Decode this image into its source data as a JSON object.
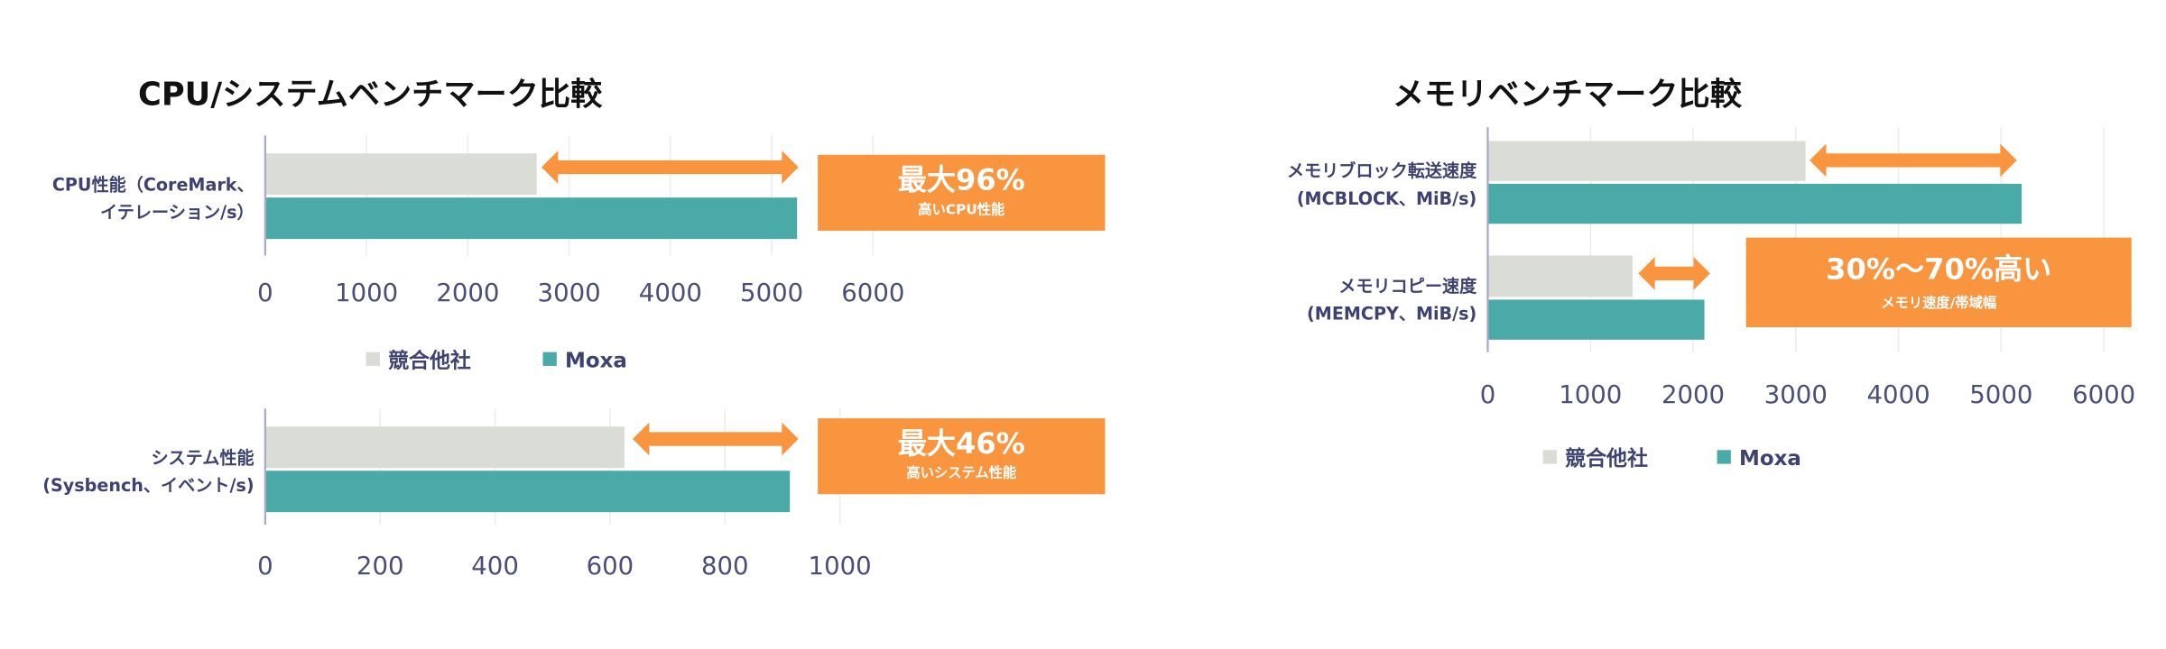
{
  "colors": {
    "competitor": "#d9ddd6",
    "moxa": "#4aaaa8",
    "highlight": "#f9953f",
    "label": "#3d4270",
    "grid": "#ececf0"
  },
  "chart_data": [
    {
      "type": "bar",
      "orientation": "horizontal",
      "title": "CPU/システムベンチマーク比較",
      "categories": [
        [
          "CPU性能（CoreMark、",
          "イテレーション/s）"
        ]
      ],
      "series": [
        {
          "name": "競合他社",
          "values": [
            2680
          ]
        },
        {
          "name": "Moxa",
          "values": [
            5250
          ]
        }
      ],
      "xlim": [
        0,
        6000
      ],
      "xticks": [
        "0",
        "1000",
        "2000",
        "3000",
        "4000",
        "5000",
        "6000"
      ],
      "grid": true,
      "legend": "bottom",
      "annotation": {
        "main": "最大96%",
        "sub": "高いCPU性能",
        "arrow": "double"
      }
    },
    {
      "type": "bar",
      "orientation": "horizontal",
      "title": "",
      "categories": [
        [
          "システム性能",
          "(Sysbench、イベント/s)"
        ]
      ],
      "series": [
        {
          "name": "競合他社",
          "values": [
            625
          ]
        },
        {
          "name": "Moxa",
          "values": [
            913
          ]
        }
      ],
      "xlim": [
        0,
        1000
      ],
      "xticks": [
        "0",
        "200",
        "400",
        "600",
        "800",
        "1000"
      ],
      "grid": true,
      "annotation": {
        "main": "最大46%",
        "sub": "高いシステム性能",
        "arrow": "double"
      }
    },
    {
      "type": "bar",
      "orientation": "horizontal",
      "title": "メモリベンチマーク比較",
      "categories": [
        [
          "メモリブロック転送速度",
          "(MCBLOCK、MiB/s)"
        ],
        [
          "メモリコピー速度",
          "(MEMCPY、MiB/s)"
        ]
      ],
      "series": [
        {
          "name": "競合他社",
          "values": [
            3095,
            1410
          ]
        },
        {
          "name": "Moxa",
          "values": [
            5200,
            2110
          ]
        }
      ],
      "xlim": [
        0,
        6000
      ],
      "xticks": [
        "0",
        "1000",
        "2000",
        "3000",
        "4000",
        "5000",
        "6000"
      ],
      "grid": true,
      "legend": "bottom",
      "annotation": {
        "main": "30%〜70%高い",
        "sub": "メモリ速度/帯域幅",
        "arrow": "double"
      }
    }
  ]
}
